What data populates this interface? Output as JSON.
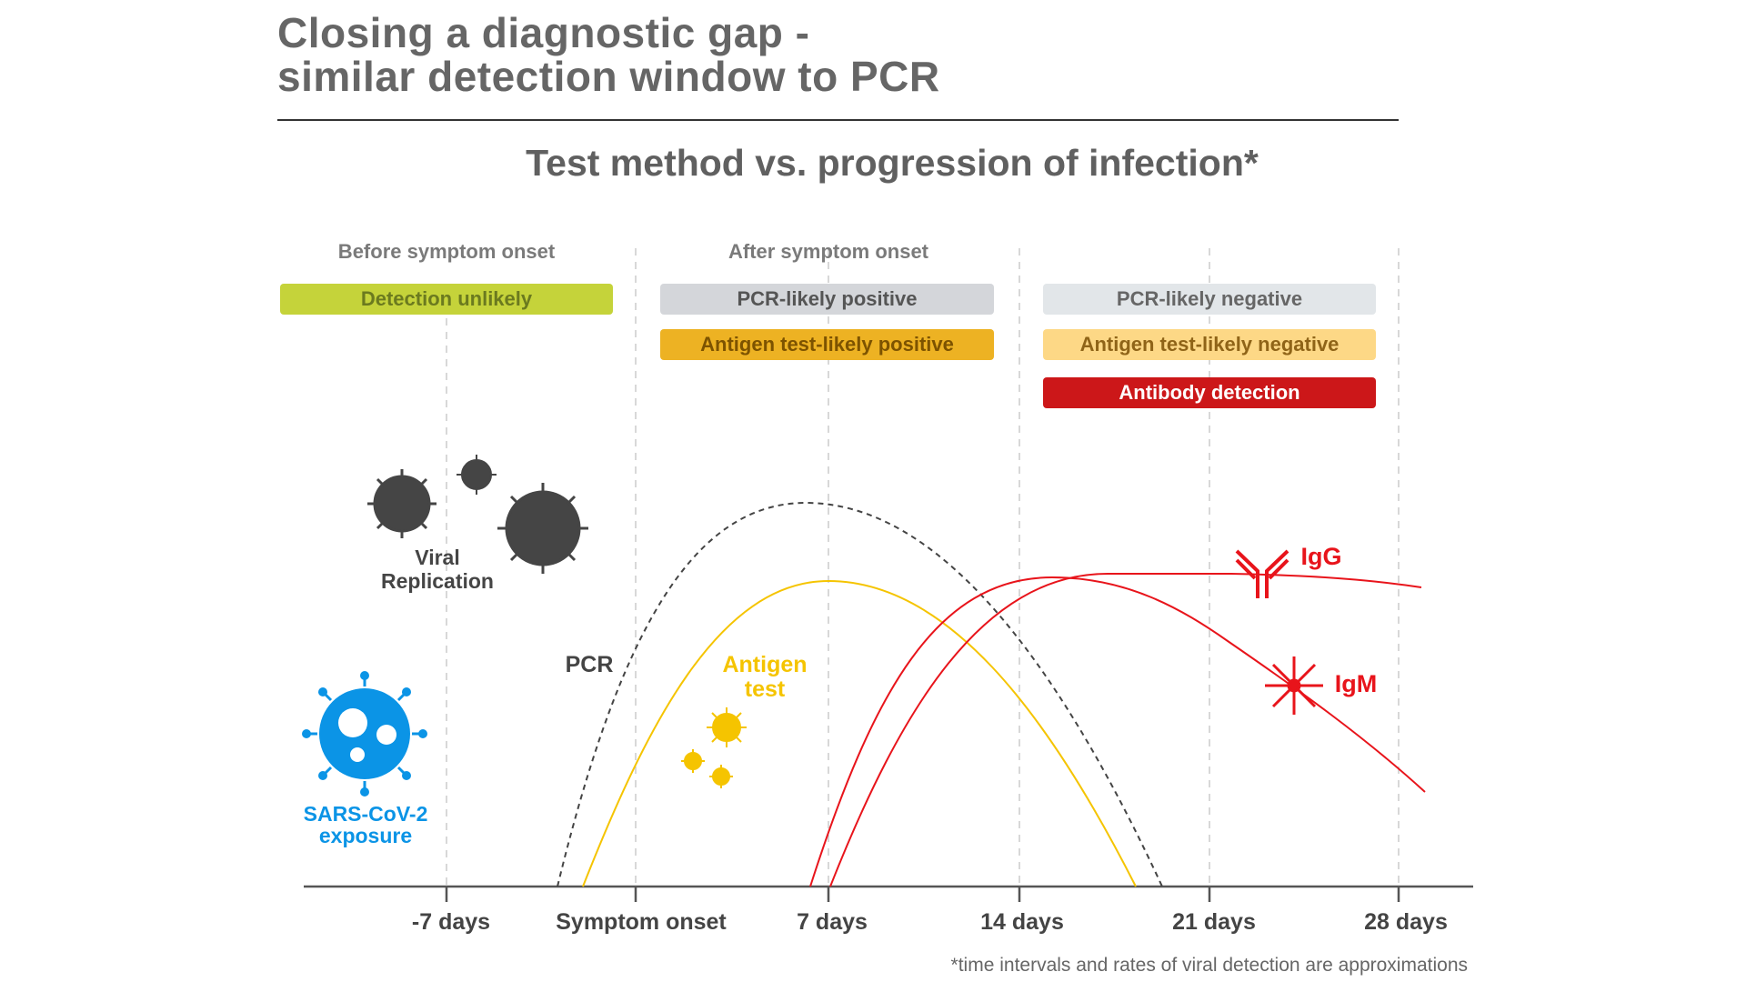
{
  "header": {
    "title_line1": "Closing a diagnostic gap -",
    "title_line2": "similar detection window to PCR",
    "subtitle": "Test method vs. progression of infection*"
  },
  "phases": {
    "before": "Before symptom onset",
    "after": "After symptom onset"
  },
  "boxes": {
    "detection_unlikely": "Detection unlikely",
    "pcr_positive": "PCR-likely positive",
    "antigen_positive": "Antigen test-likely positive",
    "pcr_negative": "PCR-likely negative",
    "antigen_negative": "Antigen test-likely negative",
    "antibody": "Antibody detection"
  },
  "labels": {
    "viral_line1": "Viral",
    "viral_line2": "Replication",
    "pcr": "PCR",
    "antigen_line1": "Antigen",
    "antigen_line2": "test",
    "igg": "IgG",
    "igm": "IgM",
    "sars_line1": "SARS-CoV-2",
    "sars_line2": "exposure"
  },
  "axis": {
    "ticks": [
      "-7 days",
      "Symptom onset",
      "7 days",
      "14 days",
      "21 days",
      "28 days"
    ]
  },
  "footnote": "*time intervals and rates of viral detection are approximations",
  "colors": {
    "pcr": "#444444",
    "antigen": "#f5c400",
    "antibody": "#e8141b",
    "virus_dark": "#454545",
    "sars": "#0b94e6"
  }
}
